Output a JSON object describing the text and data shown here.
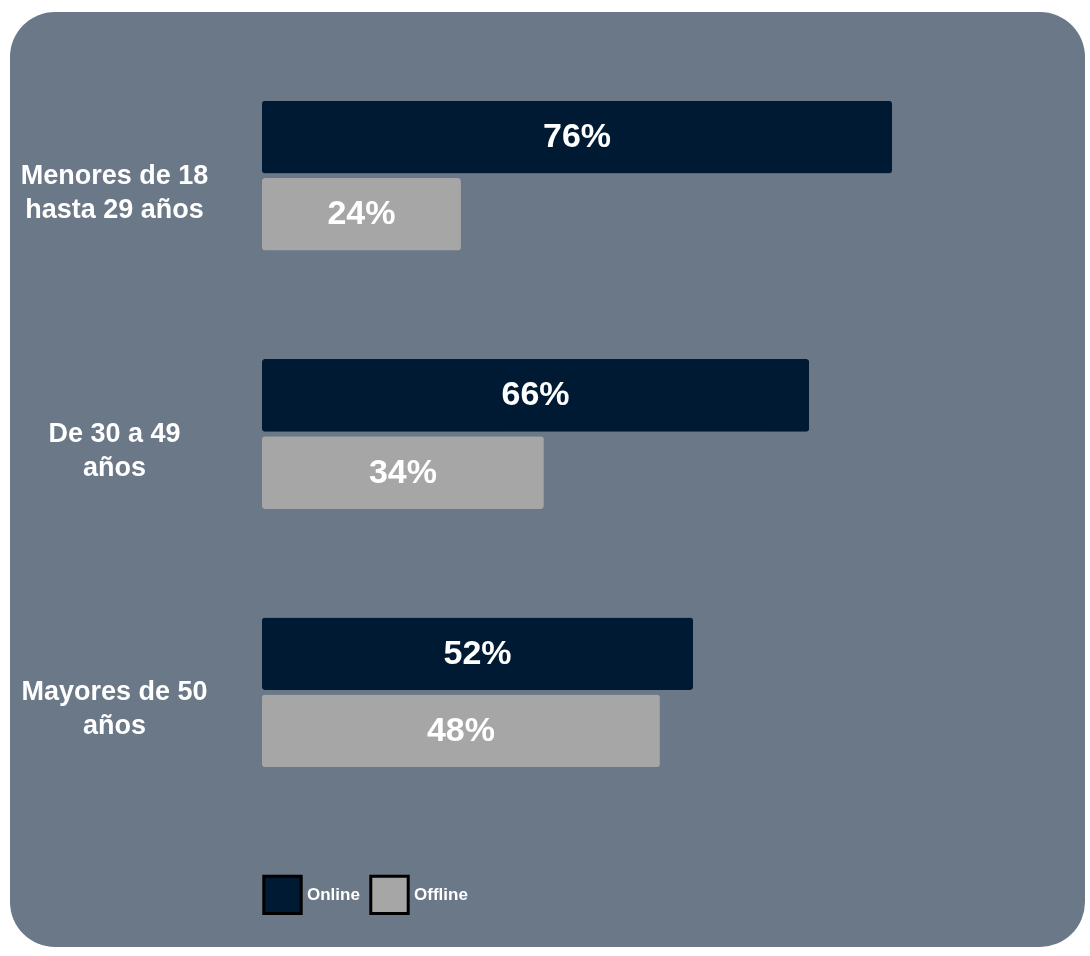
{
  "chart_data": {
    "type": "bar",
    "orientation": "horizontal",
    "categories": [
      "Menores de 18 hasta 29 años",
      "De 30 a 49 años",
      "Mayores de 50 años"
    ],
    "series": [
      {
        "name": "Online",
        "color": "#001a33",
        "values": [
          76,
          66,
          52
        ],
        "value_labels": [
          "76%",
          "66%",
          "52%"
        ]
      },
      {
        "name": "Offline",
        "color": "#a6a6a6",
        "values": [
          24,
          34,
          48
        ],
        "value_labels": [
          "24%",
          "34%",
          "48%"
        ]
      }
    ],
    "legend": "bottom"
  }
}
